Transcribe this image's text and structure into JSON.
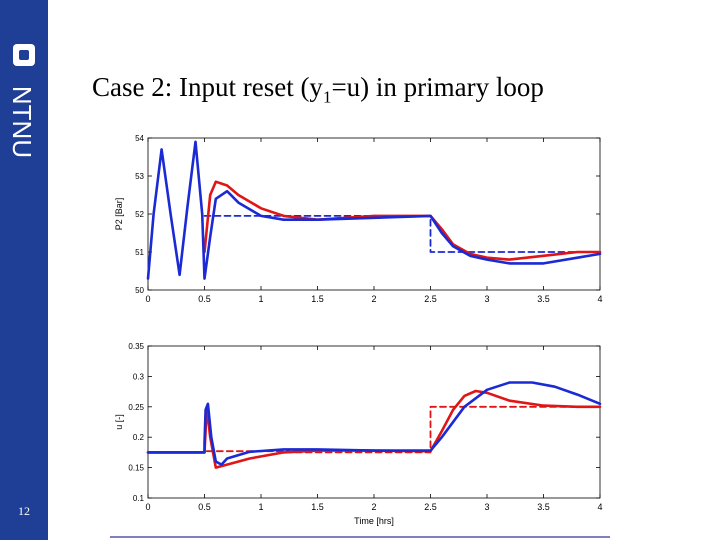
{
  "slide": {
    "title_pre": "Case 2: Input reset (y",
    "title_sub": "1",
    "title_post": "=u) in primary loop",
    "page_number": "12",
    "logo_text": "NTNU"
  },
  "colors": {
    "sidebar": "#1f3f96",
    "blue": "#1a2ad4",
    "red": "#e01515"
  },
  "chart_data": [
    {
      "type": "line",
      "title": "",
      "xlabel": "",
      "ylabel": "P2 [Bar]",
      "xlim": [
        0,
        4
      ],
      "ylim": [
        50,
        54
      ],
      "xticks": [
        "0",
        "0.5",
        "1",
        "1.5",
        "2",
        "2.5",
        "3",
        "3.5",
        "4"
      ],
      "yticks": [
        "50",
        "51",
        "52",
        "53",
        "54"
      ],
      "series": [
        {
          "name": "setpoint",
          "color": "#1a2ad4",
          "dashed": true,
          "x": [
            0.5,
            2.5,
            2.5,
            4.0
          ],
          "y": [
            51.95,
            51.95,
            51.0,
            51.0
          ]
        },
        {
          "name": "red response",
          "color": "#e01515",
          "dashed": false,
          "x": [
            0.5,
            0.55,
            0.6,
            0.7,
            0.8,
            1.0,
            1.2,
            1.5,
            2.0,
            2.5,
            2.6,
            2.7,
            2.85,
            3.0,
            3.2,
            3.5,
            3.8,
            4.0
          ],
          "y": [
            51.0,
            52.5,
            52.85,
            52.75,
            52.5,
            52.15,
            51.95,
            51.85,
            51.95,
            51.95,
            51.6,
            51.2,
            50.95,
            50.85,
            50.8,
            50.9,
            51.0,
            51.0
          ]
        },
        {
          "name": "blue response",
          "color": "#1a2ad4",
          "dashed": false,
          "x": [
            0.0,
            0.05,
            0.12,
            0.2,
            0.28,
            0.35,
            0.42,
            0.48,
            0.5,
            0.55,
            0.6,
            0.7,
            0.8,
            1.0,
            1.2,
            1.5,
            2.0,
            2.5,
            2.6,
            2.7,
            2.85,
            3.0,
            3.2,
            3.5,
            3.8,
            4.0
          ],
          "y": [
            50.3,
            52.0,
            53.7,
            52.0,
            50.4,
            52.2,
            53.9,
            52.0,
            50.3,
            51.4,
            52.4,
            52.6,
            52.3,
            51.95,
            51.85,
            51.85,
            51.9,
            51.95,
            51.5,
            51.15,
            50.9,
            50.8,
            50.7,
            50.7,
            50.85,
            50.95
          ]
        }
      ]
    },
    {
      "type": "line",
      "title": "",
      "xlabel": "Time [hrs]",
      "ylabel": "u [-]",
      "xlim": [
        0,
        4
      ],
      "ylim": [
        0.1,
        0.35
      ],
      "xticks": [
        "0",
        "0.5",
        "1",
        "1.5",
        "2",
        "2.5",
        "3",
        "3.5",
        "4"
      ],
      "yticks": [
        "0.1",
        "0.15",
        "0.2",
        "0.25",
        "0.3",
        "0.35"
      ],
      "series": [
        {
          "name": "red setpoint",
          "color": "#e01515",
          "dashed": true,
          "x": [
            0.0,
            0.5,
            0.5,
            1.25,
            1.25,
            2.5,
            2.5,
            4.0
          ],
          "y": [
            0.175,
            0.175,
            0.177,
            0.177,
            0.175,
            0.175,
            0.25,
            0.25
          ]
        },
        {
          "name": "red response",
          "color": "#e01515",
          "dashed": false,
          "x": [
            0.0,
            0.5,
            0.52,
            0.55,
            0.6,
            0.7,
            0.9,
            1.2,
            1.5,
            2.0,
            2.5,
            2.6,
            2.7,
            2.8,
            2.9,
            3.0,
            3.2,
            3.5,
            3.8,
            4.0
          ],
          "y": [
            0.175,
            0.175,
            0.25,
            0.2,
            0.15,
            0.155,
            0.165,
            0.175,
            0.178,
            0.178,
            0.177,
            0.21,
            0.245,
            0.268,
            0.276,
            0.273,
            0.26,
            0.252,
            0.25,
            0.25
          ]
        },
        {
          "name": "blue response",
          "color": "#1a2ad4",
          "dashed": false,
          "x": [
            0.0,
            0.5,
            0.5,
            0.51,
            0.53,
            0.56,
            0.6,
            0.65,
            0.7,
            0.9,
            1.2,
            1.5,
            2.0,
            2.5,
            2.6,
            2.8,
            3.0,
            3.2,
            3.4,
            3.6,
            3.8,
            4.0
          ],
          "y": [
            0.175,
            0.175,
            0.19,
            0.245,
            0.255,
            0.2,
            0.16,
            0.155,
            0.165,
            0.176,
            0.18,
            0.18,
            0.178,
            0.178,
            0.2,
            0.25,
            0.278,
            0.29,
            0.29,
            0.283,
            0.27,
            0.255
          ]
        }
      ]
    }
  ]
}
